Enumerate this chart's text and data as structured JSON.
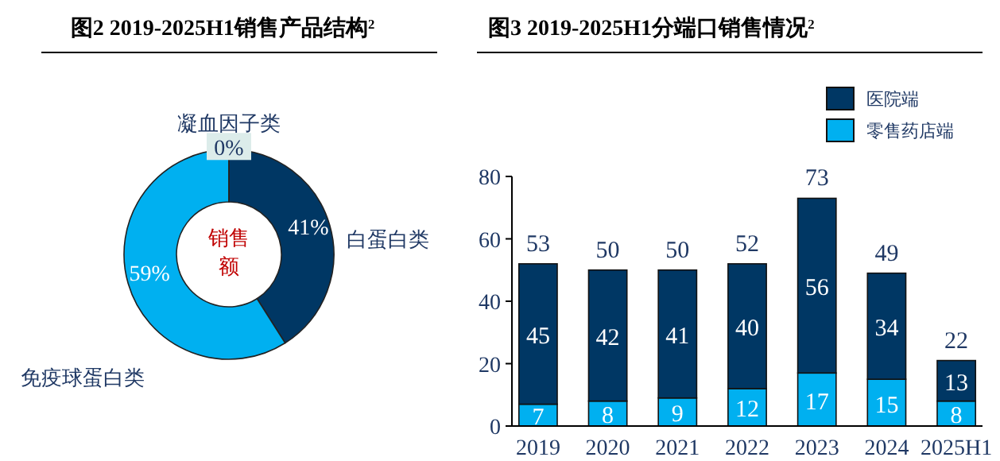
{
  "chart_data": [
    {
      "type": "donut",
      "title": "图2 2019-2025H1销售产品结构$^{2}$",
      "categories": [
        "白蛋白类",
        "免疫球蛋白类",
        "凝血因子类"
      ],
      "values": [
        41,
        59,
        0
      ],
      "colors": [
        "#003764",
        "#00b0f0",
        "#dcecea"
      ],
      "value_labels": [
        "41%",
        "59%",
        "0%"
      ],
      "annotations": [
        "销售额"
      ]
    },
    {
      "type": "bar",
      "title": "图3 2019-2025H1分端口销售情况$^{2}$",
      "categories": [
        "2019",
        "2020",
        "2021",
        "2022",
        "2023",
        "2024",
        "2025H1"
      ],
      "stacked": true,
      "series": [
        {
          "name": "零售药店端",
          "color": "#00b0f0",
          "values": [
            7,
            8,
            9,
            12,
            17,
            15,
            8
          ]
        },
        {
          "name": "医院端",
          "color": "#003764",
          "values": [
            45,
            42,
            41,
            40,
            56,
            34,
            13
          ]
        }
      ],
      "data_labels": true,
      "totals": [
        "53",
        "50",
        "50",
        "52",
        "73",
        "49",
        "22"
      ],
      "ylim": [
        0,
        80
      ],
      "yticks": [
        0,
        20,
        40,
        60,
        80
      ],
      "legend": "top right"
    }
  ]
}
